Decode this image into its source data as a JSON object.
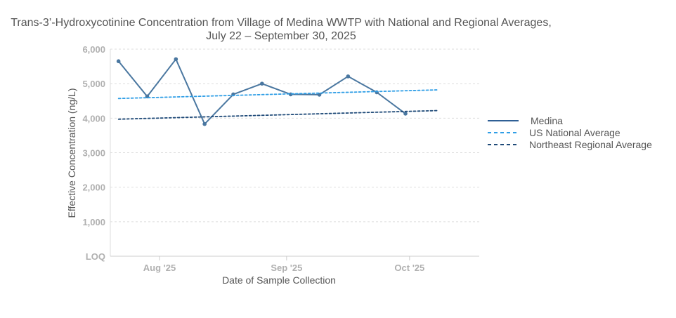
{
  "chart_data": {
    "type": "line",
    "title_line1": "Trans-3’-Hydroxycotinine Concentration from Village of Medina WWTP with National and Regional Averages,",
    "title_line2": "July 22 – September 30, 2025",
    "xlabel": "Date of Sample Collection",
    "ylabel": "Effective Concentration (ng/L)",
    "ylim": [
      0,
      6000
    ],
    "xlim": [
      "2025-07-20",
      "2025-10-18"
    ],
    "grid": true,
    "legend_position": "right",
    "y_ticks": [
      {
        "value": 0,
        "label": "LOQ"
      },
      {
        "value": 1000,
        "label": "1,000"
      },
      {
        "value": 2000,
        "label": "2,000"
      },
      {
        "value": 3000,
        "label": "3,000"
      },
      {
        "value": 4000,
        "label": "4,000"
      },
      {
        "value": 5000,
        "label": "5,000"
      },
      {
        "value": 6000,
        "label": "6,000"
      }
    ],
    "x_ticks": [
      {
        "date": "2025-08-01",
        "label": "Aug '25"
      },
      {
        "date": "2025-09-01",
        "label": "Sep '25"
      },
      {
        "date": "2025-10-01",
        "label": "Oct '25"
      }
    ],
    "series": [
      {
        "name": "Medina",
        "color": "#4a77a0",
        "style": "solid",
        "markers": true,
        "points": [
          {
            "x": "2025-07-22",
            "y": 5650
          },
          {
            "x": "2025-07-29",
            "y": 4630
          },
          {
            "x": "2025-08-05",
            "y": 5710
          },
          {
            "x": "2025-08-12",
            "y": 3830
          },
          {
            "x": "2025-08-19",
            "y": 4690
          },
          {
            "x": "2025-08-26",
            "y": 5000
          },
          {
            "x": "2025-09-02",
            "y": 4690
          },
          {
            "x": "2025-09-09",
            "y": 4680
          },
          {
            "x": "2025-09-16",
            "y": 5210
          },
          {
            "x": "2025-09-23",
            "y": 4750
          },
          {
            "x": "2025-09-30",
            "y": 4130
          }
        ]
      },
      {
        "name": "US National Average",
        "color": "#2f9ee6",
        "style": "dashed",
        "markers": false,
        "points": [
          {
            "x": "2025-07-22",
            "y": 4570
          },
          {
            "x": "2025-10-08",
            "y": 4820
          }
        ]
      },
      {
        "name": "Northeast Regional Average",
        "color": "#1f4a78",
        "style": "dashed",
        "markers": false,
        "points": [
          {
            "x": "2025-07-22",
            "y": 3970
          },
          {
            "x": "2025-10-08",
            "y": 4220
          }
        ]
      }
    ],
    "legend": [
      {
        "label": "Medina",
        "color": "#2f5f95",
        "style": "solid"
      },
      {
        "label": "US National Average",
        "color": "#2f9ee6",
        "style": "dashed"
      },
      {
        "label": "Northeast Regional Average",
        "color": "#1f4a78",
        "style": "dashed"
      }
    ]
  }
}
